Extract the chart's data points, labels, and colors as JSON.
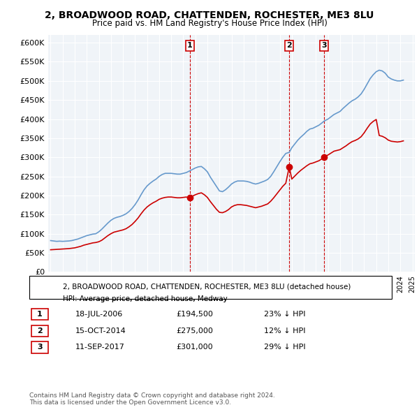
{
  "title": "2, BROADWOOD ROAD, CHATTENDEN, ROCHESTER, ME3 8LU",
  "subtitle": "Price paid vs. HM Land Registry's House Price Index (HPI)",
  "title_fontsize": 11,
  "subtitle_fontsize": 9.5,
  "background_color": "#ffffff",
  "grid_color": "#cccccc",
  "hpi_color": "#6699cc",
  "price_color": "#cc0000",
  "ylim": [
    0,
    620000
  ],
  "yticks": [
    0,
    50000,
    100000,
    150000,
    200000,
    250000,
    300000,
    350000,
    400000,
    450000,
    500000,
    550000,
    600000
  ],
  "sale_markers": [
    {
      "date_num": 2006.54,
      "price": 194500,
      "label": "1"
    },
    {
      "date_num": 2014.79,
      "price": 275000,
      "label": "2"
    },
    {
      "date_num": 2017.69,
      "price": 301000,
      "label": "3"
    }
  ],
  "vline_dates": [
    2006.54,
    2014.79,
    2017.69
  ],
  "legend_entries": [
    "2, BROADWOOD ROAD, CHATTENDEN, ROCHESTER, ME3 8LU (detached house)",
    "HPI: Average price, detached house, Medway"
  ],
  "table_entries": [
    {
      "num": "1",
      "date": "18-JUL-2006",
      "price": "£194,500",
      "hpi": "23% ↓ HPI"
    },
    {
      "num": "2",
      "date": "15-OCT-2014",
      "price": "£275,000",
      "hpi": "12% ↓ HPI"
    },
    {
      "num": "3",
      "date": "11-SEP-2017",
      "price": "£301,000",
      "hpi": "29% ↓ HPI"
    }
  ],
  "footer": "Contains HM Land Registry data © Crown copyright and database right 2024.\nThis data is licensed under the Open Government Licence v3.0.",
  "hpi_data": {
    "years": [
      1995,
      1995.25,
      1995.5,
      1995.75,
      1996,
      1996.25,
      1996.5,
      1996.75,
      1997,
      1997.25,
      1997.5,
      1997.75,
      1998,
      1998.25,
      1998.5,
      1998.75,
      1999,
      1999.25,
      1999.5,
      1999.75,
      2000,
      2000.25,
      2000.5,
      2000.75,
      2001,
      2001.25,
      2001.5,
      2001.75,
      2002,
      2002.25,
      2002.5,
      2002.75,
      2003,
      2003.25,
      2003.5,
      2003.75,
      2004,
      2004.25,
      2004.5,
      2004.75,
      2005,
      2005.25,
      2005.5,
      2005.75,
      2006,
      2006.25,
      2006.5,
      2006.75,
      2007,
      2007.25,
      2007.5,
      2007.75,
      2008,
      2008.25,
      2008.5,
      2008.75,
      2009,
      2009.25,
      2009.5,
      2009.75,
      2010,
      2010.25,
      2010.5,
      2010.75,
      2011,
      2011.25,
      2011.5,
      2011.75,
      2012,
      2012.25,
      2012.5,
      2012.75,
      2013,
      2013.25,
      2013.5,
      2013.75,
      2014,
      2014.25,
      2014.5,
      2014.79,
      2015,
      2015.25,
      2015.5,
      2015.75,
      2016,
      2016.25,
      2016.5,
      2016.75,
      2017,
      2017.25,
      2017.5,
      2017.69,
      2018,
      2018.25,
      2018.5,
      2018.75,
      2019,
      2019.25,
      2019.5,
      2019.75,
      2020,
      2020.25,
      2020.5,
      2020.75,
      2021,
      2021.25,
      2021.5,
      2021.75,
      2022,
      2022.25,
      2022.5,
      2022.75,
      2023,
      2023.25,
      2023.5,
      2023.75,
      2024,
      2024.25
    ],
    "values": [
      82000,
      81000,
      80000,
      80500,
      80000,
      80500,
      81000,
      82000,
      84000,
      86000,
      89000,
      92000,
      95000,
      97000,
      99000,
      100000,
      105000,
      112000,
      120000,
      128000,
      135000,
      140000,
      143000,
      145000,
      148000,
      152000,
      158000,
      166000,
      176000,
      188000,
      202000,
      215000,
      225000,
      232000,
      238000,
      243000,
      250000,
      255000,
      258000,
      258000,
      258000,
      257000,
      256000,
      256000,
      258000,
      260000,
      264000,
      268000,
      272000,
      275000,
      276000,
      270000,
      262000,
      248000,
      236000,
      224000,
      212000,
      210000,
      215000,
      222000,
      230000,
      235000,
      238000,
      238000,
      238000,
      237000,
      235000,
      232000,
      230000,
      232000,
      235000,
      238000,
      242000,
      250000,
      262000,
      275000,
      288000,
      300000,
      310000,
      313000,
      325000,
      335000,
      345000,
      353000,
      360000,
      368000,
      374000,
      376000,
      380000,
      384000,
      390000,
      395000,
      400000,
      406000,
      412000,
      416000,
      420000,
      428000,
      435000,
      442000,
      448000,
      452000,
      458000,
      466000,
      478000,
      492000,
      506000,
      516000,
      524000,
      528000,
      526000,
      520000,
      510000,
      505000,
      502000,
      500000,
      500000,
      502000
    ]
  },
  "price_data": {
    "years": [
      1995,
      1995.25,
      1995.5,
      1995.75,
      1996,
      1996.25,
      1996.5,
      1996.75,
      1997,
      1997.25,
      1997.5,
      1997.75,
      1998,
      1998.25,
      1998.5,
      1998.75,
      1999,
      1999.25,
      1999.5,
      1999.75,
      2000,
      2000.25,
      2000.5,
      2000.75,
      2001,
      2001.25,
      2001.5,
      2001.75,
      2002,
      2002.25,
      2002.5,
      2002.75,
      2003,
      2003.25,
      2003.5,
      2003.75,
      2004,
      2004.25,
      2004.5,
      2004.75,
      2005,
      2005.25,
      2005.5,
      2005.75,
      2006,
      2006.25,
      2006.5,
      2006.75,
      2007,
      2007.25,
      2007.5,
      2007.75,
      2008,
      2008.25,
      2008.5,
      2008.75,
      2009,
      2009.25,
      2009.5,
      2009.75,
      2010,
      2010.25,
      2010.5,
      2010.75,
      2011,
      2011.25,
      2011.5,
      2011.75,
      2012,
      2012.25,
      2012.5,
      2012.75,
      2013,
      2013.25,
      2013.5,
      2013.75,
      2014,
      2014.25,
      2014.5,
      2014.79,
      2015,
      2015.25,
      2015.5,
      2015.75,
      2016,
      2016.25,
      2016.5,
      2016.75,
      2017,
      2017.25,
      2017.5,
      2017.69,
      2018,
      2018.25,
      2018.5,
      2018.75,
      2019,
      2019.25,
      2019.5,
      2019.75,
      2020,
      2020.25,
      2020.5,
      2020.75,
      2021,
      2021.25,
      2021.5,
      2021.75,
      2022,
      2022.25,
      2022.5,
      2022.75,
      2023,
      2023.25,
      2023.5,
      2023.75,
      2024,
      2024.25
    ],
    "values": [
      58000,
      58500,
      59000,
      59500,
      60000,
      60500,
      61000,
      62000,
      63000,
      65000,
      67000,
      70000,
      72000,
      74000,
      76000,
      77000,
      79000,
      83000,
      89000,
      95000,
      100000,
      104000,
      106000,
      108000,
      110000,
      113000,
      118000,
      124000,
      132000,
      141000,
      152000,
      162000,
      170000,
      176000,
      181000,
      185000,
      190000,
      193000,
      195000,
      196000,
      196000,
      195000,
      194000,
      194000,
      195000,
      196000,
      194500,
      198000,
      202000,
      205000,
      207000,
      202000,
      195000,
      184000,
      174000,
      164000,
      156000,
      155000,
      158000,
      163000,
      170000,
      174000,
      176000,
      176000,
      175000,
      174000,
      172000,
      170000,
      168000,
      170000,
      172000,
      175000,
      178000,
      185000,
      194000,
      204000,
      214000,
      224000,
      232000,
      275000,
      243000,
      251000,
      259000,
      266000,
      272000,
      278000,
      283000,
      285000,
      288000,
      291000,
      296000,
      301000,
      306000,
      311000,
      316000,
      318000,
      320000,
      325000,
      330000,
      336000,
      341000,
      344000,
      348000,
      354000,
      364000,
      376000,
      387000,
      394000,
      399000,
      357000,
      355000,
      351000,
      345000,
      342000,
      341000,
      340000,
      341000,
      343000
    ]
  }
}
